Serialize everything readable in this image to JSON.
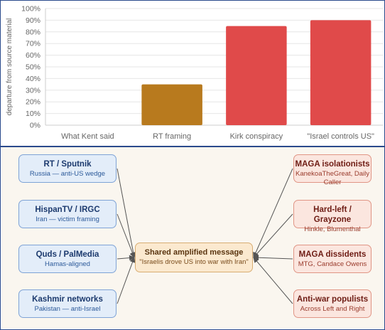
{
  "chart_data": {
    "type": "bar",
    "categories": [
      "What Kent said",
      "RT framing",
      "Kirk conspiracy",
      "\"Israel controls US\""
    ],
    "values": [
      0,
      35,
      85,
      90
    ],
    "colors": [
      "#b87a1e",
      "#b87a1e",
      "#e04a4a",
      "#e04a4a"
    ],
    "ylabel": "departure from source material",
    "xlabel": "",
    "ylim": [
      0,
      100
    ],
    "yticks": [
      "0%",
      "10%",
      "20%",
      "30%",
      "40%",
      "50%",
      "60%",
      "70%",
      "80%",
      "90%",
      "100%"
    ],
    "grid": true
  },
  "network": {
    "left_nodes": [
      {
        "title": "RT / Sputnik",
        "subtitle": "Russia — anti-US wedge"
      },
      {
        "title": "HispanTV / IRGC",
        "subtitle": "Iran — victim framing"
      },
      {
        "title": "Quds / PalMedia",
        "subtitle": "Hamas-aligned"
      },
      {
        "title": "Kashmir networks",
        "subtitle": "Pakistan — anti-Israel"
      }
    ],
    "right_nodes": [
      {
        "title": "MAGA isolationists",
        "subtitle": "KanekoaTheGreat, Daily Caller"
      },
      {
        "title": "Hard-left / Grayzone",
        "subtitle": "Hinkle, Blumenthal"
      },
      {
        "title": "MAGA dissidents",
        "subtitle": "MTG, Candace Owens"
      },
      {
        "title": "Anti-war populists",
        "subtitle": "Across Left and Right"
      }
    ],
    "center": {
      "title": "Shared amplified message",
      "subtitle": "\"Israelis drove US into war with Iran\""
    },
    "colors": {
      "left": "#e3edf9",
      "right": "#fbe6df",
      "center": "#fbe9cf",
      "arrow": "#555555"
    }
  }
}
